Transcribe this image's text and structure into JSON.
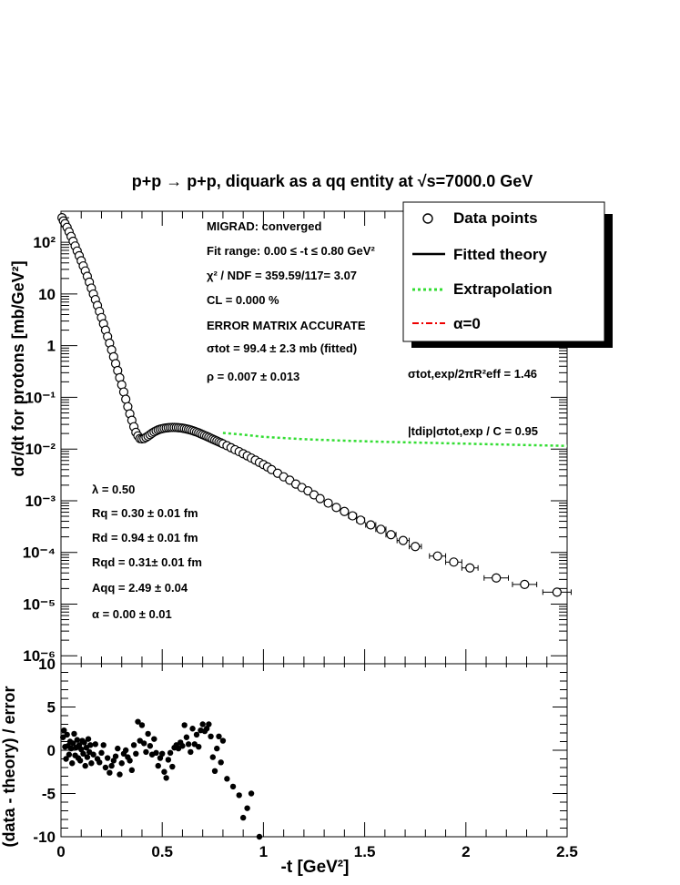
{
  "chart_data": [
    {
      "type": "scatter",
      "panel": "main",
      "title": "p+p → p+p, diquark as a qq entity at √s=7000.0 GeV",
      "ylabel": "dσ/dt for protons [mb/GeV²]",
      "xlim": [
        0,
        2.5
      ],
      "ylim": [
        7e-07,
        400
      ],
      "yscale": "log",
      "grid": false,
      "legend_position": "top-right",
      "legend": [
        "Data points",
        "Fitted theory",
        "Extrapolation",
        "α=0"
      ],
      "y_tick_labels": [
        "10⁻⁶",
        "10⁻⁵",
        "10⁻⁴",
        "10⁻³",
        "10⁻²",
        "10⁻¹",
        "1",
        "10",
        "10²"
      ],
      "fit_info": [
        "MIGRAD: converged",
        "Fit range: 0.00 ≤ -t ≤ 0.80 GeV²",
        "χ² / NDF = 359.59/117= 3.07",
        "CL = 0.000 %",
        "ERROR MATRIX ACCURATE",
        "σtot = 99.4 ±  2.3 mb (fitted)",
        "ρ = 0.007 ± 0.013"
      ],
      "params": [
        "λ = 0.50",
        "Rq = 0.30 ± 0.01 fm",
        "Rd = 0.94 ± 0.01 fm",
        "Rqd = 0.31± 0.01 fm",
        "Aqq = 2.49 ± 0.04",
        "α = 0.00 ± 0.01"
      ],
      "ratio1": "σtot,exp/2πR²eff = 1.46",
      "ratio2": "|tdip|σtot,exp / C = 0.95",
      "data_points": {
        "x": [
          0.005,
          0.012,
          0.02,
          0.03,
          0.04,
          0.05,
          0.06,
          0.07,
          0.08,
          0.09,
          0.1,
          0.11,
          0.12,
          0.13,
          0.14,
          0.15,
          0.16,
          0.17,
          0.18,
          0.19,
          0.2,
          0.21,
          0.22,
          0.23,
          0.24,
          0.25,
          0.26,
          0.27,
          0.28,
          0.29,
          0.3,
          0.31,
          0.32,
          0.33,
          0.34,
          0.35,
          0.36,
          0.37,
          0.38,
          0.39,
          0.4,
          0.41,
          0.42,
          0.43,
          0.44,
          0.45,
          0.46,
          0.47,
          0.48,
          0.49,
          0.5,
          0.51,
          0.52,
          0.53,
          0.54,
          0.55,
          0.56,
          0.57,
          0.58,
          0.59,
          0.6,
          0.61,
          0.62,
          0.63,
          0.64,
          0.65,
          0.66,
          0.67,
          0.68,
          0.69,
          0.7,
          0.71,
          0.72,
          0.73,
          0.74,
          0.75,
          0.76,
          0.77,
          0.78,
          0.79,
          0.8,
          0.82,
          0.84,
          0.86,
          0.88,
          0.9,
          0.92,
          0.94,
          0.96,
          0.98,
          1.0,
          1.02,
          1.04,
          1.07,
          1.1,
          1.13,
          1.16,
          1.19,
          1.22,
          1.25,
          1.28,
          1.32,
          1.36,
          1.4,
          1.44,
          1.48,
          1.53,
          1.58,
          1.63,
          1.69,
          1.75,
          1.86,
          1.94,
          2.02,
          2.15,
          2.29,
          2.45
        ],
        "y": [
          300,
          260,
          230,
          195,
          160,
          130,
          105,
          85,
          68,
          55,
          44,
          35,
          28,
          22,
          17,
          13,
          10,
          7.8,
          6,
          4.6,
          3.5,
          2.65,
          2.0,
          1.5,
          1.12,
          0.83,
          0.61,
          0.45,
          0.33,
          0.24,
          0.175,
          0.127,
          0.092,
          0.066,
          0.048,
          0.036,
          0.027,
          0.021,
          0.018,
          0.016,
          0.0157,
          0.016,
          0.0168,
          0.0178,
          0.019,
          0.0203,
          0.0215,
          0.0225,
          0.0235,
          0.0242,
          0.0248,
          0.0253,
          0.0256,
          0.0259,
          0.0261,
          0.0262,
          0.0262,
          0.0261,
          0.0259,
          0.0257,
          0.0254,
          0.025,
          0.0245,
          0.024,
          0.0234,
          0.0227,
          0.022,
          0.0213,
          0.0206,
          0.0198,
          0.019,
          0.0183,
          0.0176,
          0.0169,
          0.0162,
          0.0155,
          0.0149,
          0.0143,
          0.0137,
          0.0132,
          0.0126,
          0.0116,
          0.0106,
          0.0097,
          0.0089,
          0.0081,
          0.0074,
          0.0067,
          0.0061,
          0.0055,
          0.005,
          0.0045,
          0.004,
          0.0034,
          0.0029,
          0.0025,
          0.0021,
          0.0018,
          0.00155,
          0.0013,
          0.0011,
          0.0009,
          0.00074,
          0.00062,
          0.00051,
          0.00042,
          0.00034,
          0.00028,
          0.00022,
          0.00017,
          0.00013,
          8.5e-05,
          6.5e-05,
          5e-05,
          3.2e-05,
          2.4e-05,
          1.7e-05
        ],
        "xerr": [
          0,
          0,
          0,
          0,
          0,
          0,
          0,
          0,
          0,
          0,
          0,
          0,
          0,
          0,
          0,
          0,
          0,
          0,
          0,
          0,
          0,
          0,
          0,
          0,
          0,
          0,
          0,
          0,
          0,
          0,
          0,
          0,
          0,
          0,
          0,
          0,
          0,
          0,
          0,
          0,
          0,
          0,
          0,
          0,
          0,
          0,
          0,
          0,
          0,
          0,
          0,
          0,
          0,
          0,
          0,
          0,
          0,
          0,
          0,
          0,
          0,
          0,
          0,
          0,
          0,
          0,
          0,
          0,
          0,
          0,
          0,
          0,
          0,
          0,
          0,
          0,
          0,
          0,
          0,
          0,
          0,
          0,
          0,
          0,
          0,
          0,
          0,
          0,
          0,
          0,
          0,
          0,
          0,
          0,
          0,
          0,
          0,
          0,
          0,
          0,
          0,
          0,
          0,
          0,
          0.02,
          0.02,
          0.025,
          0.025,
          0.025,
          0.03,
          0.03,
          0.04,
          0.04,
          0.04,
          0.06,
          0.06,
          0.07
        ]
      },
      "fitted_theory": {
        "x": [
          0,
          0.05,
          0.1,
          0.15,
          0.2,
          0.25,
          0.3,
          0.35,
          0.4,
          0.45,
          0.5,
          0.55,
          0.6,
          0.65,
          0.7,
          0.75,
          0.8
        ],
        "y": [
          320,
          130,
          44,
          13,
          3.5,
          0.83,
          0.175,
          0.036,
          0.0157,
          0.019,
          0.0248,
          0.0262,
          0.0257,
          0.0234,
          0.0198,
          0.0162,
          0.0126
        ]
      },
      "extrapolation": {
        "x": [
          0.8,
          0.9,
          1.0,
          1.2,
          1.4,
          1.6,
          1.8,
          2.0,
          2.2,
          2.4,
          2.5
        ],
        "y": [
          0.0205,
          0.019,
          0.0172,
          0.0155,
          0.0145,
          0.0138,
          0.0132,
          0.0127,
          0.0122,
          0.0117,
          0.0115
        ]
      }
    },
    {
      "type": "scatter",
      "panel": "residuals",
      "xlabel": "-t [GeV²]",
      "ylabel": "(data - theory) / error",
      "xlim": [
        0,
        2.5
      ],
      "ylim": [
        -10,
        10
      ],
      "x_tick_labels": [
        "0",
        "0.5",
        "1",
        "1.5",
        "2",
        "2.5"
      ],
      "y_tick_labels": [
        "-10",
        "-5",
        "0",
        "5",
        "10"
      ],
      "x": [
        0.01,
        0.015,
        0.02,
        0.025,
        0.03,
        0.035,
        0.04,
        0.045,
        0.05,
        0.055,
        0.06,
        0.065,
        0.07,
        0.075,
        0.08,
        0.085,
        0.09,
        0.095,
        0.1,
        0.105,
        0.11,
        0.115,
        0.12,
        0.125,
        0.13,
        0.135,
        0.14,
        0.145,
        0.15,
        0.16,
        0.17,
        0.18,
        0.19,
        0.2,
        0.21,
        0.22,
        0.23,
        0.24,
        0.25,
        0.26,
        0.27,
        0.28,
        0.29,
        0.3,
        0.31,
        0.32,
        0.33,
        0.34,
        0.35,
        0.36,
        0.37,
        0.38,
        0.39,
        0.4,
        0.41,
        0.42,
        0.43,
        0.44,
        0.45,
        0.46,
        0.47,
        0.48,
        0.49,
        0.5,
        0.51,
        0.52,
        0.53,
        0.54,
        0.55,
        0.56,
        0.57,
        0.58,
        0.59,
        0.6,
        0.61,
        0.62,
        0.63,
        0.64,
        0.65,
        0.66,
        0.67,
        0.68,
        0.69,
        0.7,
        0.71,
        0.72,
        0.73,
        0.74,
        0.75,
        0.76,
        0.77,
        0.78,
        0.79,
        0.8,
        0.82,
        0.85,
        0.88,
        0.9,
        0.92,
        0.94,
        0.98
      ],
      "y": [
        1.5,
        2.3,
        0.4,
        -1,
        1.8,
        0.5,
        -0.5,
        1,
        0.2,
        -1.5,
        0.8,
        1.9,
        -0.6,
        0.3,
        1.2,
        -0.9,
        0.6,
        -1.2,
        0.1,
        1.1,
        -0.4,
        0.9,
        -1.8,
        0.3,
        -0.8,
        1.3,
        -0.2,
        0.6,
        -1.5,
        -0.5,
        0.7,
        -1,
        -1.4,
        -0.3,
        0.6,
        -2,
        -0.9,
        -2.6,
        -1.8,
        -1.2,
        -0.7,
        0.2,
        -2.8,
        -1.5,
        -0.4,
        0,
        -0.8,
        -1.2,
        -2.3,
        0.6,
        -0.4,
        3.3,
        1.1,
        2.9,
        0.8,
        -0.2,
        1.9,
        0.5,
        -0.5,
        1.3,
        -0.3,
        -1.8,
        -0.9,
        -0.4,
        -2.5,
        -3.2,
        -1.1,
        -0.3,
        -1.9,
        0.3,
        0.6,
        0.2,
        0.9,
        0.5,
        2.9,
        1.5,
        0.7,
        -0.2,
        2.5,
        0.7,
        1.8,
        0.4,
        2.3,
        3,
        2.2,
        2.5,
        3,
        1.6,
        -0.8,
        -2.4,
        0.2,
        1.6,
        -1.4,
        1.1,
        -3.3,
        -4.2,
        -5.2,
        -7.8,
        -6.7,
        -5,
        -10
      ]
    }
  ]
}
